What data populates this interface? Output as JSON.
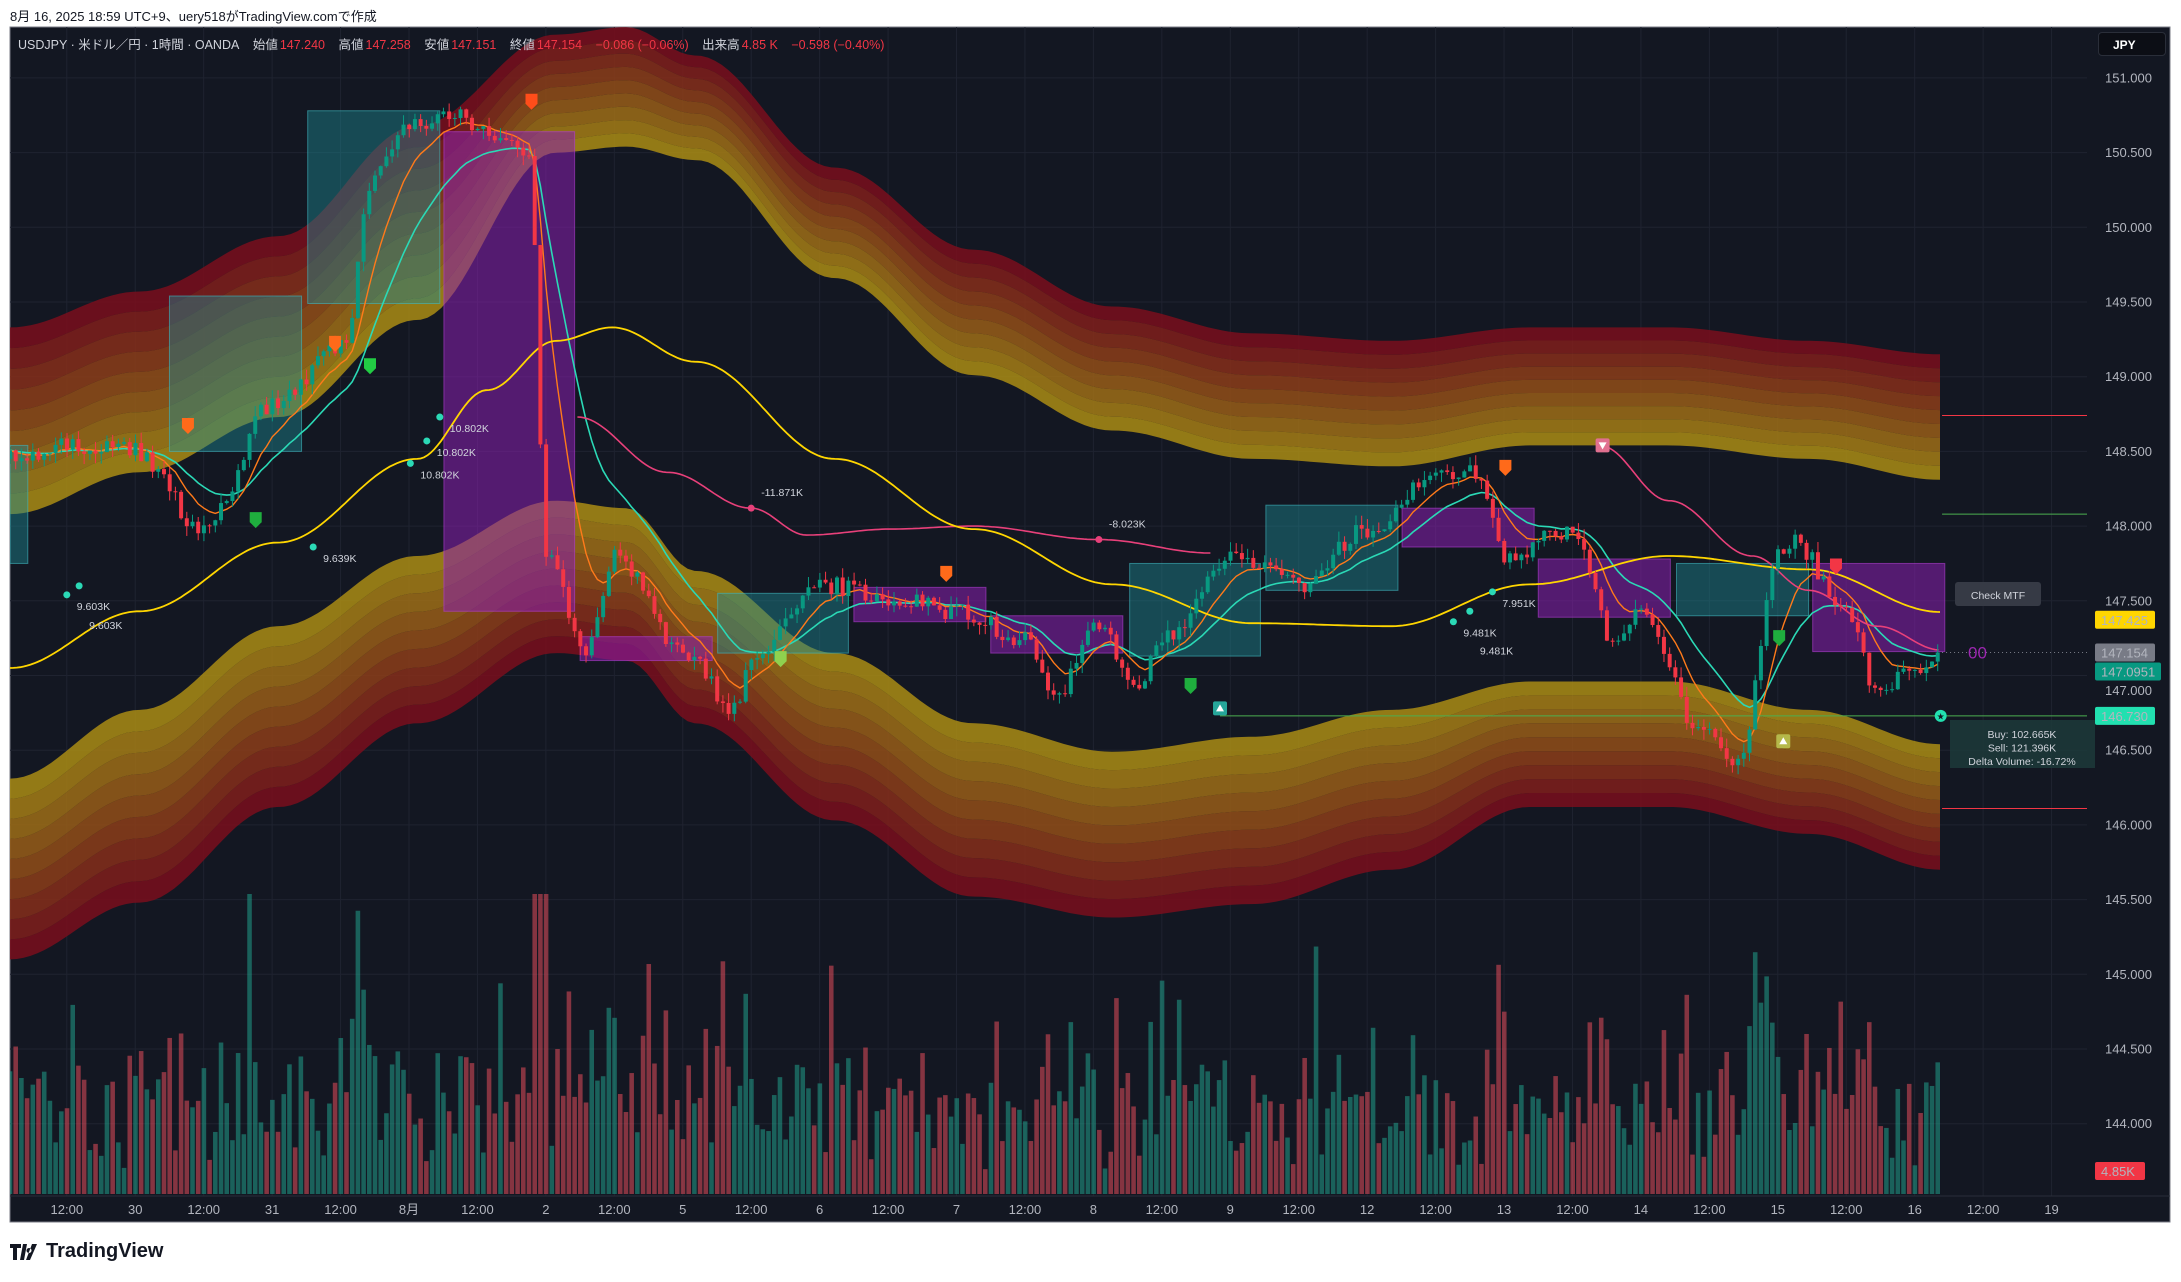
{
  "caption": "8月 16, 2025 18:59 UTC+9、uery518がTradingView.comで作成",
  "legend": {
    "symbol": "USDJPY · 米ドル／円 · 1時間 · OANDA",
    "open_label": "始値",
    "open": "147.240",
    "high_label": "高値",
    "high": "147.258",
    "low_label": "安値",
    "low": "147.151",
    "close_label": "終値",
    "close": "147.154",
    "change": "−0.086 (−0.06%)",
    "volume_label": "出来高",
    "volume": "4.85 K",
    "volume_change": "−0.598 (−0.40%)"
  },
  "currency_button": "JPY",
  "logo_text": "TradingView",
  "colors": {
    "up": "#089981",
    "down": "#f23645",
    "slow_ma": "#ffd600",
    "pink_line": "#e8407a",
    "fast_line": "#2bd9b6",
    "orange_line": "#ff7a1a",
    "teal_box": "#1d8a92",
    "purple_box": "#8b1fb0",
    "background": "#131722"
  },
  "chart_data": {
    "type": "candlestick",
    "symbol": "USDJPY",
    "timeframe": "1時間",
    "y_ticks": [
      "151.000",
      "150.500",
      "150.000",
      "149.500",
      "149.000",
      "148.500",
      "148.000",
      "147.500",
      "147.000",
      "146.500",
      "146.000",
      "145.500",
      "145.000",
      "144.500",
      "144.000"
    ],
    "x_ticks": [
      "12:00",
      "30",
      "12:00",
      "31",
      "12:00",
      "8月",
      "12:00",
      "2",
      "12:00",
      "5",
      "12:00",
      "6",
      "12:00",
      "7",
      "12:00",
      "8",
      "12:00",
      "9",
      "12:00",
      "12",
      "12:00",
      "13",
      "12:00",
      "14",
      "12:00",
      "15",
      "12:00",
      "16",
      "12:00",
      "19"
    ],
    "grid": true,
    "price_path": [
      [
        -0.83,
        148.45
      ],
      [
        0,
        148.54
      ],
      [
        1,
        148.5
      ],
      [
        2.01,
        147.98
      ],
      [
        3.01,
        148.82
      ],
      [
        4.02,
        149.19
      ],
      [
        4.51,
        150.4
      ],
      [
        5,
        150.68
      ],
      [
        5.73,
        150.78
      ],
      [
        6.02,
        150.64
      ],
      [
        6.75,
        150.5
      ],
      [
        7.01,
        147.8
      ],
      [
        7.56,
        147.15
      ],
      [
        8.01,
        147.8
      ],
      [
        9,
        147.15
      ],
      [
        9.8,
        146.77
      ],
      [
        10.02,
        147.15
      ],
      [
        11,
        147.61
      ],
      [
        12.01,
        147.52
      ],
      [
        13.01,
        147.43
      ],
      [
        14,
        147.24
      ],
      [
        14.47,
        146.87
      ],
      [
        15,
        147.33
      ],
      [
        15.69,
        146.96
      ],
      [
        16.02,
        147.24
      ],
      [
        17.01,
        147.8
      ],
      [
        18.01,
        147.61
      ],
      [
        19,
        147.98
      ],
      [
        20.02,
        148.36
      ],
      [
        20.57,
        148.36
      ],
      [
        21.02,
        147.8
      ],
      [
        22.01,
        147.98
      ],
      [
        22.6,
        147.24
      ],
      [
        23.01,
        147.43
      ],
      [
        23.82,
        146.68
      ],
      [
        24.43,
        146.4
      ],
      [
        25,
        147.8
      ],
      [
        25.24,
        147.89
      ],
      [
        26.02,
        147.43
      ],
      [
        26.46,
        146.87
      ],
      [
        27.01,
        147.05
      ],
      [
        27.38,
        147.154
      ]
    ],
    "bands": {
      "t": [
        -0.83,
        1.06,
        3.09,
        5.12,
        7.15,
        8.17,
        9.19,
        11.22,
        13.25,
        15.28,
        17.32,
        19.35,
        21.38,
        23.41,
        25.45,
        27.38
      ],
      "upper_outer": [
        149.33,
        149.57,
        149.94,
        150.68,
        151.29,
        151.34,
        151.15,
        150.4,
        149.85,
        149.47,
        149.29,
        149.24,
        149.33,
        149.33,
        149.24,
        149.15
      ],
      "upper_inner": [
        148.08,
        148.36,
        148.73,
        149.38,
        150.5,
        150.54,
        150.45,
        149.66,
        149.01,
        148.64,
        148.45,
        148.4,
        148.54,
        148.54,
        148.45,
        148.31
      ],
      "lower_inner": [
        146.31,
        146.77,
        147.33,
        147.8,
        148.17,
        148.12,
        147.7,
        147.15,
        146.68,
        146.49,
        146.59,
        146.77,
        146.96,
        146.96,
        146.77,
        146.54
      ],
      "lower_outer": [
        145.1,
        145.48,
        146.12,
        146.68,
        147.15,
        147.1,
        146.68,
        146.03,
        145.52,
        145.38,
        145.47,
        145.7,
        146.12,
        146.12,
        145.94,
        145.7
      ]
    },
    "slow_ma": [
      [
        -0.83,
        147.05
      ],
      [
        1.06,
        147.43
      ],
      [
        3.09,
        147.89
      ],
      [
        5.12,
        148.45
      ],
      [
        6.14,
        148.91
      ],
      [
        7.15,
        149.24
      ],
      [
        7.97,
        149.33
      ],
      [
        9.19,
        149.1
      ],
      [
        11.22,
        148.45
      ],
      [
        13.25,
        147.98
      ],
      [
        15.28,
        147.61
      ],
      [
        17.32,
        147.35
      ],
      [
        19.35,
        147.33
      ],
      [
        21.38,
        147.61
      ],
      [
        23.41,
        147.8
      ],
      [
        25.45,
        147.71
      ],
      [
        27.38,
        147.425
      ]
    ],
    "pink_lines": [
      [
        [
          7.46,
          148.73
        ],
        [
          8.78,
          148.36
        ],
        [
          10,
          148.12
        ],
        [
          10.81,
          147.94
        ],
        [
          12.03,
          147.98
        ],
        [
          13.25,
          148.0
        ],
        [
          15.08,
          147.91
        ],
        [
          16.71,
          147.82
        ]
      ],
      [
        [
          22.4,
          148.54
        ],
        [
          23.41,
          148.17
        ],
        [
          24.63,
          147.8
        ],
        [
          25.45,
          147.57
        ],
        [
          26.46,
          147.33
        ],
        [
          27.38,
          147.17
        ]
      ]
    ],
    "teal_boxes": [
      [
        -0.83,
        -0.57,
        148.54,
        147.75
      ],
      [
        1.5,
        3.43,
        149.54,
        148.5
      ],
      [
        3.52,
        5.45,
        150.78,
        149.49
      ],
      [
        9.51,
        11.42,
        147.55,
        147.15
      ],
      [
        15.53,
        17.44,
        147.75,
        147.13
      ],
      [
        17.52,
        19.45,
        148.14,
        147.57
      ],
      [
        23.52,
        25.45,
        147.75,
        147.4
      ]
    ],
    "purple_boxes": [
      [
        5.51,
        7.42,
        150.64,
        147.43
      ],
      [
        7.5,
        9.43,
        147.26,
        147.1
      ],
      [
        11.5,
        13.43,
        147.59,
        147.36
      ],
      [
        13.5,
        15.43,
        147.4,
        147.15
      ],
      [
        19.51,
        21.44,
        148.12,
        147.86
      ],
      [
        21.5,
        23.43,
        147.78,
        147.39
      ],
      [
        25.51,
        27.44,
        147.75,
        147.16
      ]
    ],
    "markers": [
      {
        "type": "shield",
        "color": "#ff6a1a",
        "t": 1.77,
        "p": 148.67
      },
      {
        "type": "shield",
        "color": "#ff6a1a",
        "t": 3.92,
        "p": 149.22
      },
      {
        "type": "shield",
        "color": "#ff4d1a",
        "t": 6.79,
        "p": 150.84
      },
      {
        "type": "shield",
        "color": "#ff6a1a",
        "t": 12.85,
        "p": 147.68
      },
      {
        "type": "shield",
        "color": "#ff6a1a",
        "t": 21.02,
        "p": 148.39
      },
      {
        "type": "shield",
        "color": "#1fae3e",
        "t": 2.76,
        "p": 148.04
      },
      {
        "type": "shield",
        "color": "#22cc44",
        "t": 4.43,
        "p": 149.07
      },
      {
        "type": "shield",
        "color": "#8fd14f",
        "t": 10.43,
        "p": 147.11
      },
      {
        "type": "shield",
        "color": "#1fae3e",
        "t": 16.42,
        "p": 146.93
      },
      {
        "type": "shield",
        "color": "#1fae3e",
        "t": 25.02,
        "p": 147.25
      },
      {
        "type": "shield",
        "color": "#f23645",
        "t": 25.85,
        "p": 147.73
      },
      {
        "type": "tri-up",
        "color": "#26a69a",
        "t": 16.85,
        "p": 146.78
      },
      {
        "type": "tri-down",
        "color": "#e07090",
        "t": 22.44,
        "p": 148.54
      },
      {
        "type": "tri-up",
        "color": "#b5b84a",
        "t": 25.08,
        "p": 146.56
      }
    ],
    "volume_dots": [
      {
        "t": 0,
        "p": 147.54,
        "label": "9.603K",
        "color": "#2bd9b6"
      },
      {
        "t": 0.18,
        "p": 147.6,
        "label": "9.603K",
        "color": "#2bd9b6"
      },
      {
        "t": 3.6,
        "p": 147.86,
        "label": "9.639K",
        "color": "#2bd9b6"
      },
      {
        "t": 5.02,
        "p": 148.42,
        "label": "10.802K",
        "color": "#2bd9b6"
      },
      {
        "t": 5.26,
        "p": 148.57,
        "label": "10.802K",
        "color": "#2bd9b6"
      },
      {
        "t": 5.45,
        "p": 148.73,
        "label": "10.802K",
        "color": "#2bd9b6"
      },
      {
        "t": 10,
        "p": 148.12,
        "label": "-11.871K",
        "color": "#e8407a",
        "above": true
      },
      {
        "t": 15.08,
        "p": 147.91,
        "label": "-8.023K",
        "color": "#e8407a",
        "above": true
      },
      {
        "t": 20.26,
        "p": 147.36,
        "label": "9.481K",
        "color": "#2bd9b6"
      },
      {
        "t": 20.5,
        "p": 147.43,
        "label": "9.481K",
        "color": "#2bd9b6"
      },
      {
        "t": 20.83,
        "p": 147.56,
        "label": "7.951K",
        "color": "#2bd9b6"
      }
    ],
    "levels": [
      {
        "p": 148.74,
        "color": "#f23645",
        "from": 27.4
      },
      {
        "p": 148.08,
        "color": "#4caf50",
        "from": 27.4
      },
      {
        "p": 146.73,
        "color": "#4caf50",
        "from": 16.85
      },
      {
        "p": 146.11,
        "color": "#f23645",
        "from": 27.4
      }
    ],
    "price_labels": [
      {
        "p": 147.425,
        "text": "147.425",
        "bg": "#ffd600",
        "fg": "#131722"
      },
      {
        "p": 147.154,
        "text": "147.154",
        "bg": "#787b86",
        "fg": "#ffffff"
      },
      {
        "p": 147.0951,
        "text": "147.0951",
        "bg": "#089981",
        "fg": "#ffffff"
      },
      {
        "p": 146.73,
        "text": "146.730",
        "bg": "#22e0b0",
        "fg": "#131722"
      }
    ],
    "volume_label": {
      "text": "4.85K",
      "bg": "#f23645"
    },
    "check_mtf": "Check MTF",
    "mtf_value": "00",
    "info_box": [
      "Buy: 102.665K",
      "Sell: 121.396K",
      "Delta Volume: -16.72%"
    ]
  }
}
